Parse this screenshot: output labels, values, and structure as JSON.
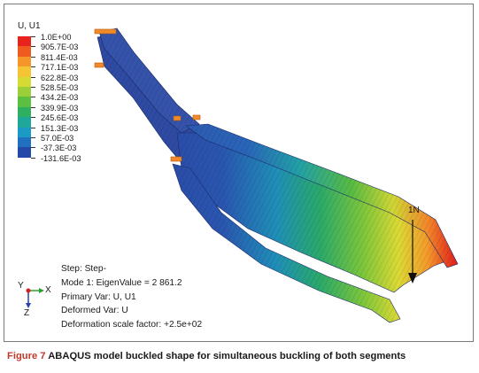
{
  "legend": {
    "title": "U, U1",
    "entries": [
      {
        "label": "1.0E+00",
        "color": "#e8231d"
      },
      {
        "label": "905.7E-03",
        "color": "#ef5a1f"
      },
      {
        "label": "811.4E-03",
        "color": "#f5962a"
      },
      {
        "label": "717.1E-03",
        "color": "#f4c434"
      },
      {
        "label": "622.8E-03",
        "color": "#d6da34"
      },
      {
        "label": "528.5E-03",
        "color": "#9bcf3a"
      },
      {
        "label": "434.2E-03",
        "color": "#5bbf3f"
      },
      {
        "label": "339.9E-03",
        "color": "#2fb060"
      },
      {
        "label": "245.6E-03",
        "color": "#1fa89a"
      },
      {
        "label": "151.3E-03",
        "color": "#1a9ac4"
      },
      {
        "label": "57.0E-03",
        "color": "#2070c0"
      },
      {
        "label": "-37.3E-03",
        "color": "#2348a8"
      },
      {
        "label": "-131.6E-03",
        "color": null
      }
    ]
  },
  "load_label": "1N",
  "info": {
    "step": "Step: Step-",
    "mode": "Mode 1: EigenValue = 2 861.2",
    "primary_var": "Primary Var: U, U1",
    "deformed_var": "Deformed Var: U",
    "scale_factor": "Deformation scale factor: +2.5e+02"
  },
  "triad": {
    "y": "Y",
    "x": "X",
    "z": "Z"
  },
  "caption": {
    "figure": "Figure 7",
    "text": "ABAQUS model buckled shape for simultaneous buckling of both segments"
  }
}
